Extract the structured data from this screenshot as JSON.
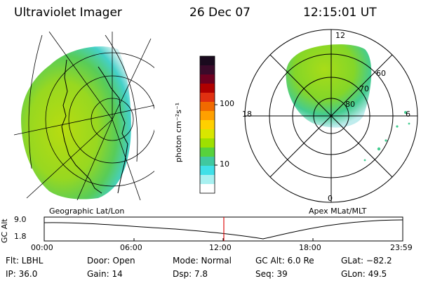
{
  "header": {
    "title": "Ultraviolet Imager",
    "date": "26 Dec 07",
    "time": "12:15:01 UT"
  },
  "left_panel": {
    "caption": "Geographic Lat/Lon"
  },
  "right_panel": {
    "caption": "Apex MLat/MLT",
    "mlt_labels": {
      "top": "12",
      "left": "18",
      "right": "6",
      "bottom": "0"
    },
    "mlat_labels": [
      "60",
      "70",
      "80"
    ]
  },
  "colorbar": {
    "unit_label": "photon cm⁻²s⁻¹",
    "ticks": [
      "100",
      "10"
    ],
    "colors": [
      "#1a0a1e",
      "#3a0a2a",
      "#6e0020",
      "#b00000",
      "#e03010",
      "#f06a00",
      "#ffa000",
      "#ffd000",
      "#d8e600",
      "#9ee000",
      "#57d23c",
      "#40c8a0",
      "#40e0e8",
      "#a8f0f0",
      "#ffffff"
    ]
  },
  "timeline": {
    "ylabel": "GC Alt",
    "y_ticks": [
      "9.0",
      "1.8"
    ],
    "x_ticks": [
      "00:00",
      "06:00",
      "12:00",
      "18:00",
      "23:59"
    ],
    "current_marker": "12:15",
    "marker_color": "#e01010"
  },
  "info": {
    "flt": "Flt: LBHL",
    "ip": "IP: 36.0",
    "door": "Door: Open",
    "gain": "Gain: 14",
    "mode": "Mode: Normal",
    "dsp": "Dsp:    7.8",
    "gcalt": "GC Alt: 6.0 Re",
    "seq": "Seq: 39",
    "glat": "GLat: −82.2",
    "glon": "GLon:  49.5"
  }
}
